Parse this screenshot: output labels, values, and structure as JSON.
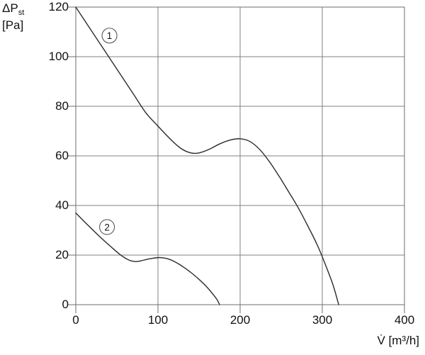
{
  "figure": {
    "y_axis_quantity": "ΔP",
    "y_axis_quantity_sub": "st",
    "y_axis_unit": "[Pa]",
    "x_axis_quantity": "V̇",
    "x_axis_unit": "[m³/h]"
  },
  "chart_data": {
    "type": "line",
    "title": "",
    "xlabel": "V̇ [m³/h]",
    "ylabel": "ΔP_st [Pa]",
    "xlim": [
      0,
      400
    ],
    "ylim": [
      0,
      120
    ],
    "x_ticks": [
      0,
      100,
      200,
      300,
      400
    ],
    "y_ticks": [
      0,
      20,
      40,
      60,
      80,
      100,
      120
    ],
    "grid": true,
    "legend_position": "on-curve-circled-numbers",
    "series": [
      {
        "name": "1",
        "label": "1",
        "label_pos": [
          41,
          108.5
        ],
        "points": [
          [
            0,
            120
          ],
          [
            25,
            107.5
          ],
          [
            50,
            95
          ],
          [
            70,
            85
          ],
          [
            85,
            77.5
          ],
          [
            100,
            72
          ],
          [
            115,
            66.8
          ],
          [
            128,
            63
          ],
          [
            140,
            61.2
          ],
          [
            150,
            61.2
          ],
          [
            162,
            62.6
          ],
          [
            175,
            64.8
          ],
          [
            188,
            66.4
          ],
          [
            200,
            66.9
          ],
          [
            212,
            65.8
          ],
          [
            224,
            62.5
          ],
          [
            236,
            57.5
          ],
          [
            248,
            51.5
          ],
          [
            260,
            45
          ],
          [
            270,
            39.5
          ],
          [
            282,
            32
          ],
          [
            294,
            24
          ],
          [
            304,
            16
          ],
          [
            313,
            8
          ],
          [
            320,
            0
          ]
        ]
      },
      {
        "name": "2",
        "label": "2",
        "label_pos": [
          38,
          31.3
        ],
        "points": [
          [
            0,
            37
          ],
          [
            14,
            32.3
          ],
          [
            28,
            27.8
          ],
          [
            42,
            23.6
          ],
          [
            54,
            20.2
          ],
          [
            64,
            18.1
          ],
          [
            73,
            17.4
          ],
          [
            83,
            18
          ],
          [
            93,
            18.7
          ],
          [
            102,
            19
          ],
          [
            111,
            18.6
          ],
          [
            120,
            17.4
          ],
          [
            130,
            15.4
          ],
          [
            140,
            13
          ],
          [
            150,
            10.2
          ],
          [
            159,
            7.3
          ],
          [
            167,
            4.2
          ],
          [
            172,
            2
          ],
          [
            175,
            0
          ]
        ]
      }
    ],
    "colors": {
      "background": "#ffffff",
      "grid": "#808080",
      "border": "#6e6e6e",
      "curve": "#2b2b2b",
      "text": "#111111",
      "label_circle_stroke": "#555555",
      "label_circle_fill": "#ffffff"
    }
  }
}
